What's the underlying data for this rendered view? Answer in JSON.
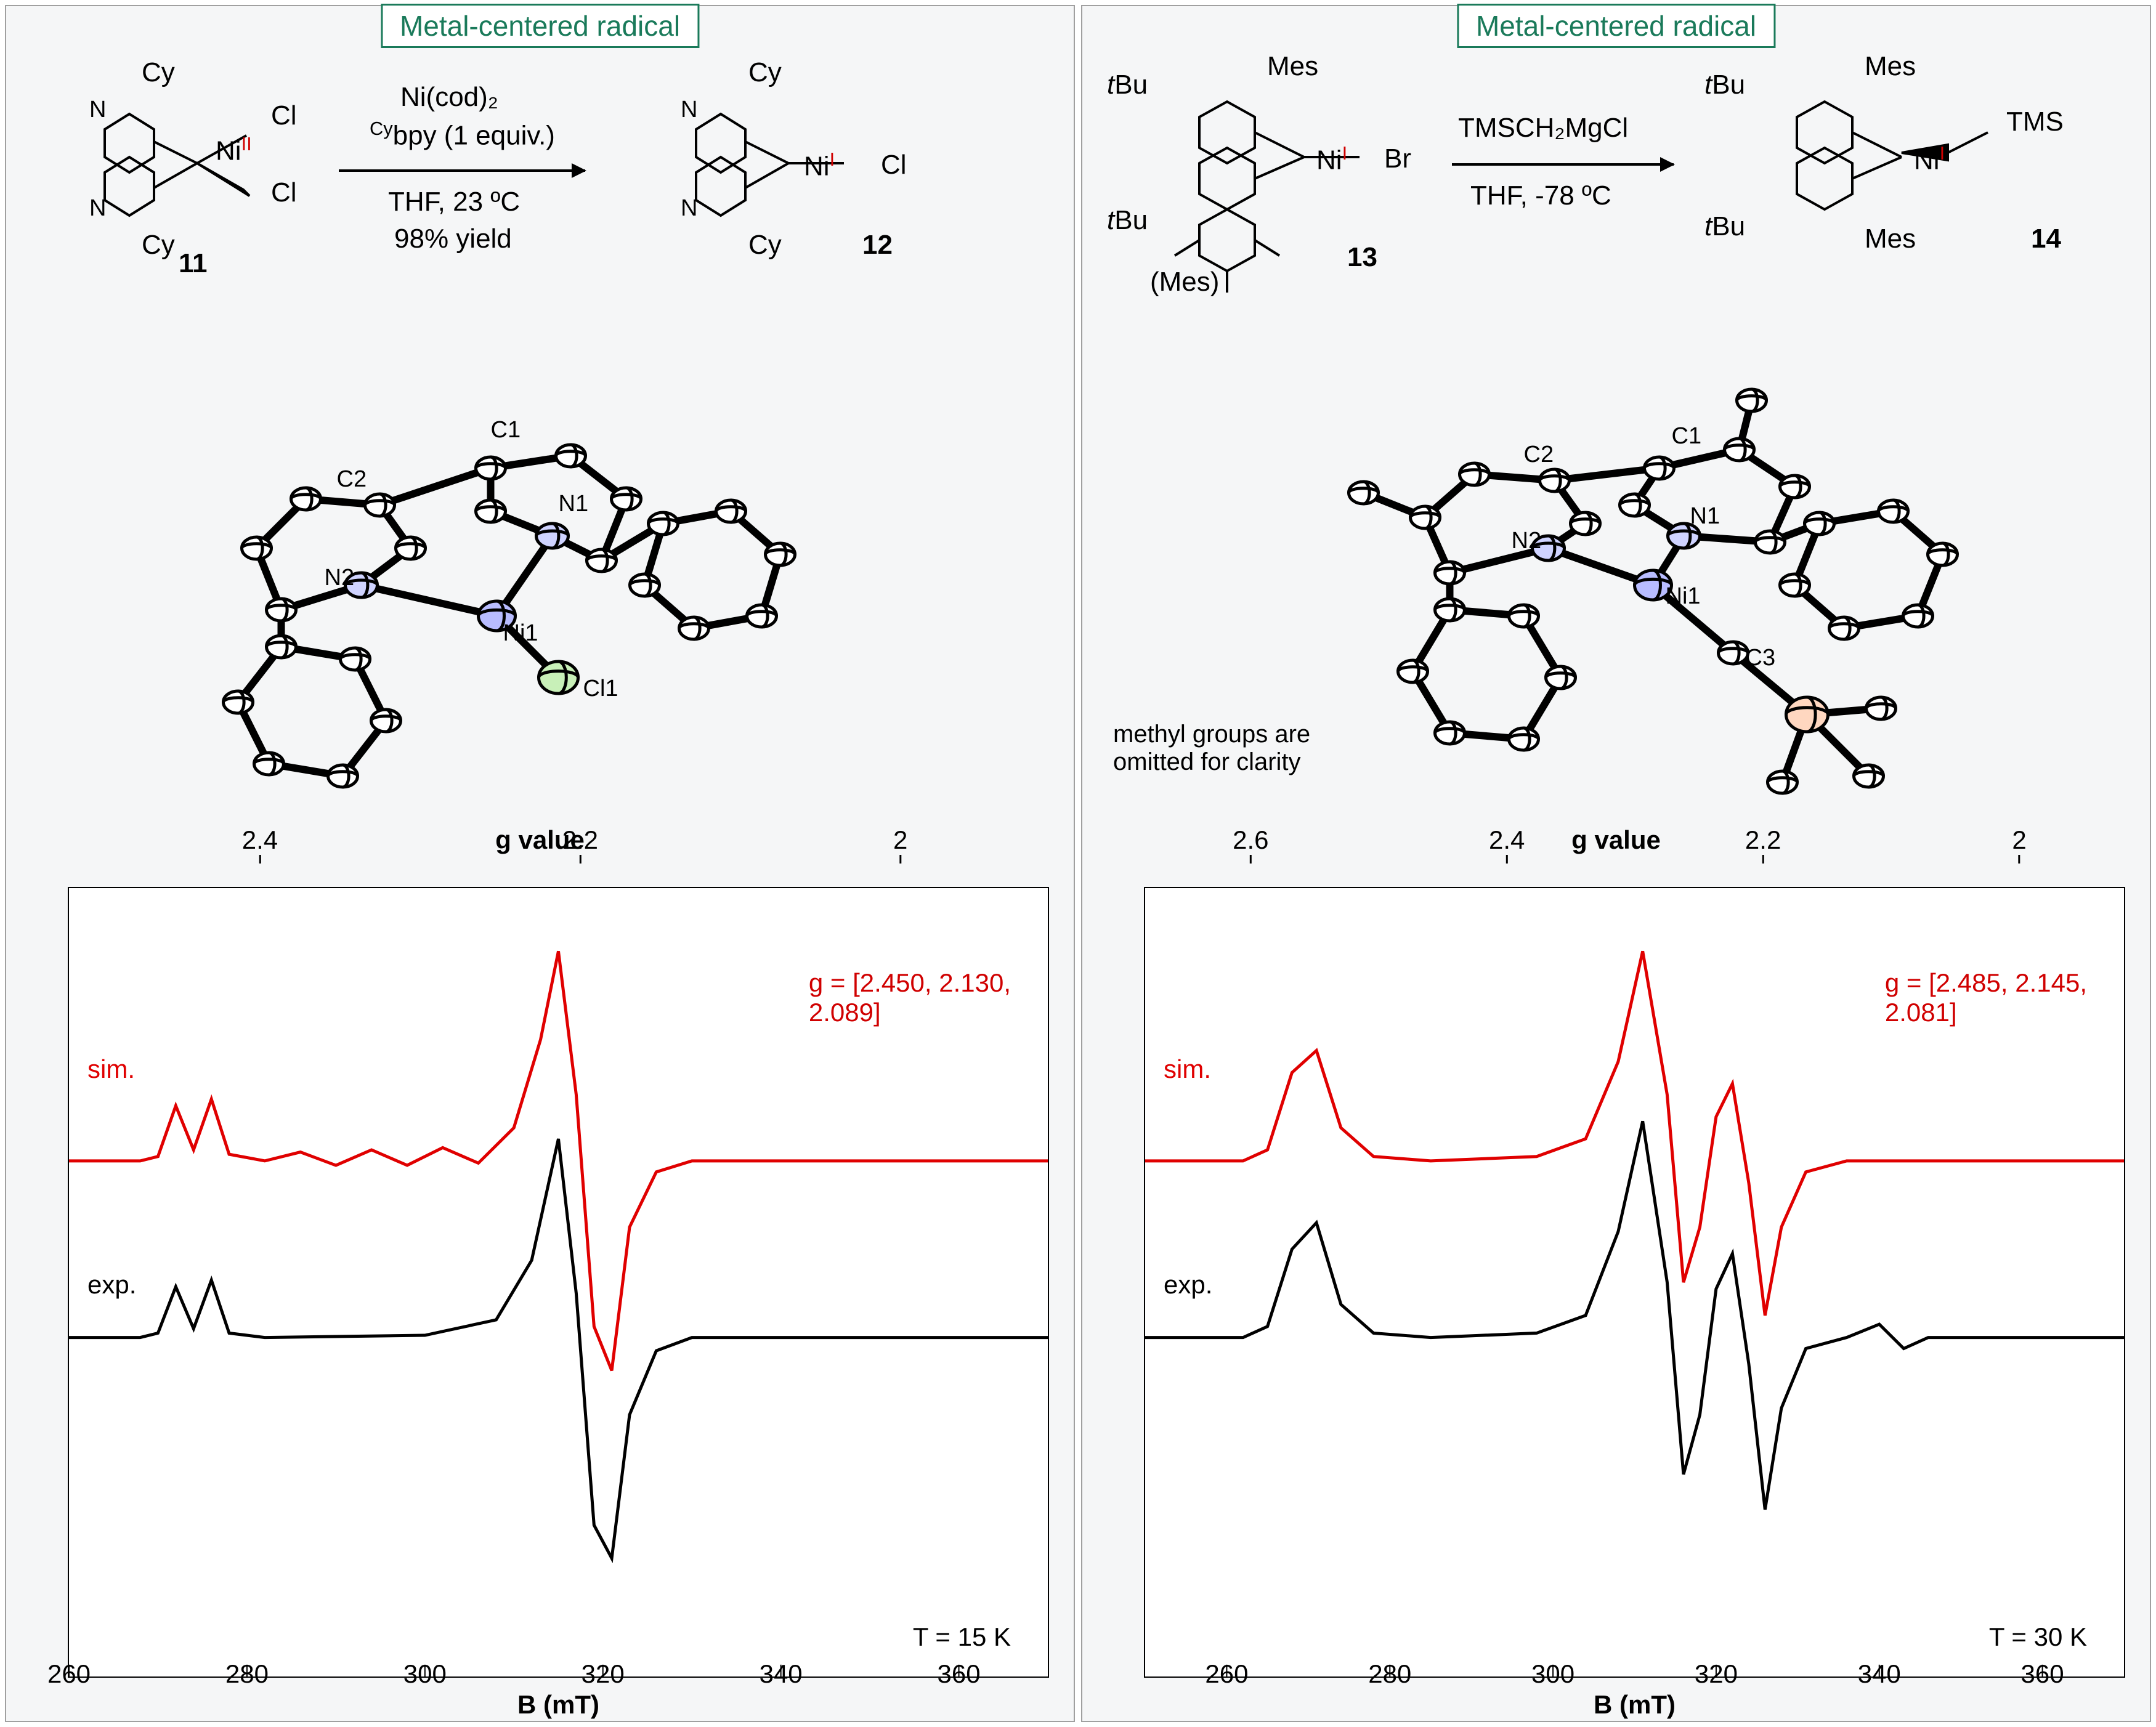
{
  "tag_label": "Metal-centered radical",
  "left": {
    "reagent_line1": "Ni(cod)₂",
    "reagent_line2_pre": "Cy",
    "reagent_line2": "bpy (1 equiv.)",
    "cond_line1": "THF, 23 ºC",
    "cond_line2": "98% yield",
    "sm_sub1": "Cy",
    "sm_sub2": "Cy",
    "sm_x1": "Cl",
    "sm_x2": "Cl",
    "sm_ni_ox": "II",
    "sm_num": "11",
    "pr_sub1": "Cy",
    "pr_sub2": "Cy",
    "pr_x1": "Cl",
    "pr_ni_ox": "I",
    "pr_num": "12",
    "ortep_labels": {
      "C1": "C1",
      "C2": "C2",
      "N1": "N1",
      "N2": "N2",
      "Ni1": "Ni1",
      "Cl1": "Cl1"
    },
    "g_title": "g value",
    "g_ticks": [
      "2.4",
      "2.2",
      "2"
    ],
    "g_tick_pos_pct": [
      18,
      48,
      78
    ],
    "epr": {
      "sim_label": "sim.",
      "exp_label": "exp.",
      "g_text_l1": "g = [2.450, 2.130,",
      "g_text_l2": "2.089]",
      "temp": "T = 15 K",
      "sim_color": "#e00000",
      "exp_color": "#000000",
      "line_width": 5,
      "xmin": 260,
      "xmax": 370,
      "xticks": [
        260,
        280,
        300,
        320,
        340,
        360
      ],
      "xlabel": "B (mT)",
      "sim_path": [
        [
          260,
          0.0
        ],
        [
          268,
          0.0
        ],
        [
          270,
          0.02
        ],
        [
          272,
          0.25
        ],
        [
          274,
          0.05
        ],
        [
          276,
          0.28
        ],
        [
          278,
          0.03
        ],
        [
          282,
          0.0
        ],
        [
          286,
          0.04
        ],
        [
          290,
          -0.02
        ],
        [
          294,
          0.05
        ],
        [
          298,
          -0.02
        ],
        [
          302,
          0.06
        ],
        [
          306,
          -0.01
        ],
        [
          310,
          0.15
        ],
        [
          313,
          0.55
        ],
        [
          315,
          0.95
        ],
        [
          317,
          0.3
        ],
        [
          319,
          -0.75
        ],
        [
          321,
          -0.95
        ],
        [
          323,
          -0.3
        ],
        [
          326,
          -0.05
        ],
        [
          330,
          0.0
        ],
        [
          370,
          0.0
        ]
      ],
      "exp_path": [
        [
          260,
          0.0
        ],
        [
          268,
          0.0
        ],
        [
          270,
          0.02
        ],
        [
          272,
          0.23
        ],
        [
          274,
          0.04
        ],
        [
          276,
          0.26
        ],
        [
          278,
          0.02
        ],
        [
          282,
          0.0
        ],
        [
          300,
          0.01
        ],
        [
          308,
          0.08
        ],
        [
          312,
          0.35
        ],
        [
          315,
          0.9
        ],
        [
          317,
          0.2
        ],
        [
          319,
          -0.85
        ],
        [
          321,
          -1.0
        ],
        [
          323,
          -0.35
        ],
        [
          326,
          -0.06
        ],
        [
          330,
          0.0
        ],
        [
          370,
          0.0
        ]
      ],
      "sim_y_offset": 0.55,
      "exp_y_offset": -0.25
    }
  },
  "right": {
    "reagent_line1": "TMSCH₂MgCl",
    "cond_line1": "THF, -78 ºC",
    "sm_sub1": "Mes",
    "sm_sub2_full": "(Mes)",
    "sm_tbu": "tBu",
    "sm_x1": "Br",
    "sm_ni_ox": "I",
    "sm_num": "13",
    "pr_sub1": "Mes",
    "pr_sub2": "Mes",
    "pr_tbu": "tBu",
    "pr_x1": "TMS",
    "pr_ni_ox": "I",
    "pr_num": "14",
    "ortep_labels": {
      "C1": "C1",
      "C2": "C2",
      "N1": "N1",
      "N2": "N2",
      "Ni1": "Ni1",
      "C3": "C3"
    },
    "ortep_note_l1": "methyl groups are",
    "ortep_note_l2": "omitted for clarity",
    "g_title": "g value",
    "g_ticks": [
      "2.6",
      "2.4",
      "2.2",
      "2"
    ],
    "g_tick_pos_pct": [
      10,
      34,
      58,
      82
    ],
    "epr": {
      "sim_label": "sim.",
      "exp_label": "exp.",
      "g_text_l1": "g = [2.485, 2.145,",
      "g_text_l2": "2.081]",
      "temp": "T = 30 K",
      "sim_color": "#e00000",
      "exp_color": "#000000",
      "line_width": 5,
      "xmin": 250,
      "xmax": 370,
      "xticks": [
        260,
        280,
        300,
        320,
        340,
        360
      ],
      "xlabel": "B (mT)",
      "sim_path": [
        [
          250,
          0.0
        ],
        [
          262,
          0.0
        ],
        [
          265,
          0.05
        ],
        [
          268,
          0.4
        ],
        [
          271,
          0.5
        ],
        [
          274,
          0.15
        ],
        [
          278,
          0.02
        ],
        [
          285,
          0.0
        ],
        [
          298,
          0.02
        ],
        [
          304,
          0.1
        ],
        [
          308,
          0.45
        ],
        [
          311,
          0.95
        ],
        [
          314,
          0.3
        ],
        [
          316,
          -0.55
        ],
        [
          318,
          -0.3
        ],
        [
          320,
          0.2
        ],
        [
          322,
          0.35
        ],
        [
          324,
          -0.1
        ],
        [
          326,
          -0.7
        ],
        [
          328,
          -0.3
        ],
        [
          331,
          -0.05
        ],
        [
          336,
          0.0
        ],
        [
          370,
          0.0
        ]
      ],
      "exp_path": [
        [
          250,
          0.0
        ],
        [
          262,
          0.0
        ],
        [
          265,
          0.05
        ],
        [
          268,
          0.4
        ],
        [
          271,
          0.52
        ],
        [
          274,
          0.15
        ],
        [
          278,
          0.02
        ],
        [
          285,
          0.0
        ],
        [
          298,
          0.02
        ],
        [
          304,
          0.1
        ],
        [
          308,
          0.48
        ],
        [
          311,
          0.98
        ],
        [
          314,
          0.25
        ],
        [
          316,
          -0.62
        ],
        [
          318,
          -0.35
        ],
        [
          320,
          0.22
        ],
        [
          322,
          0.38
        ],
        [
          324,
          -0.12
        ],
        [
          326,
          -0.78
        ],
        [
          328,
          -0.32
        ],
        [
          331,
          -0.05
        ],
        [
          336,
          0.0
        ],
        [
          340,
          0.06
        ],
        [
          343,
          -0.05
        ],
        [
          346,
          0.0
        ],
        [
          370,
          0.0
        ]
      ],
      "sim_y_offset": 0.55,
      "exp_y_offset": -0.25
    }
  }
}
